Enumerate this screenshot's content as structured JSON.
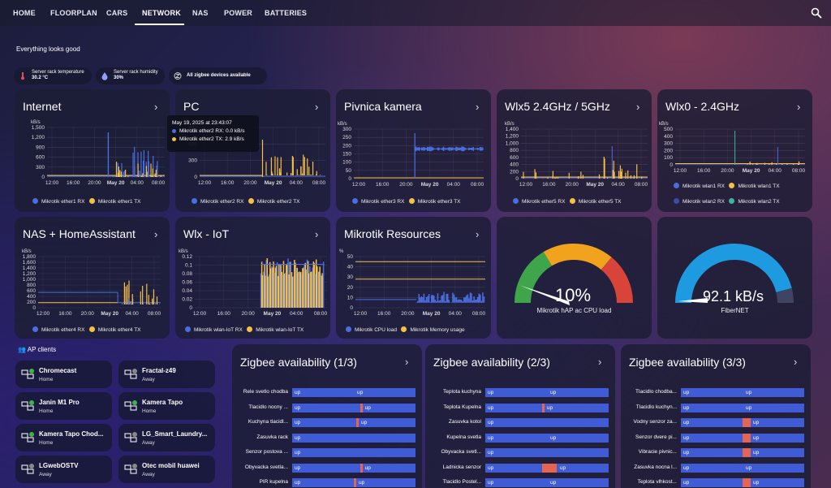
{
  "nav": {
    "tabs": [
      "HOME",
      "FLOORPLAN",
      "CARS",
      "NETWORK",
      "NAS",
      "POWER",
      "BATTERIES"
    ],
    "active": "NETWORK"
  },
  "status": "Everything looks good",
  "chips": [
    {
      "label": "Server rack temperature",
      "value": "30.2 °C",
      "icon": "thermometer-icon",
      "color": "#e05050"
    },
    {
      "label": "Server rack humidity",
      "value": "30%",
      "icon": "water-drop-icon",
      "color": "#8fa0ff"
    },
    {
      "label": "",
      "value": "All zigbee devices available",
      "icon": "zigbee-icon",
      "color": "#ccc"
    }
  ],
  "cards": {
    "internet": {
      "title": "Internet",
      "unit": "kB/s",
      "yticks": [
        "1,500",
        "1,200",
        "900",
        "600",
        "300",
        "0"
      ],
      "xticks": [
        "12:00",
        "16:00",
        "20:00",
        "May 20",
        "04:00",
        "08:00"
      ],
      "legend": [
        "Mikrotik ether1 RX",
        "Mikrotik ether1 TX"
      ]
    },
    "pc": {
      "title": "PC",
      "unit": "kB/s",
      "yticks": [
        "900",
        "600",
        "300",
        "0"
      ],
      "xticks": [
        "12:00",
        "16:00",
        "20:00",
        "May 20",
        "04:00",
        "08:00"
      ],
      "legend": [
        "Mikrotik ether2 RX",
        "Mikrotik ether2 TX"
      ],
      "tooltip": {
        "time": "May 19, 2025 at 23:43:07",
        "rx": "Mikrotik ether2 RX: 0.0 kB/s",
        "tx": "Mikrotik ether2 TX: 2.9 kB/s"
      }
    },
    "pivnica": {
      "title": "Pivnica kamera",
      "unit": "kB/s",
      "yticks": [
        "300",
        "250",
        "200",
        "150",
        "100",
        "50",
        "0"
      ],
      "xticks": [
        "12:00",
        "16:00",
        "20:00",
        "May 20",
        "04:00",
        "08:00"
      ],
      "legend": [
        "Mikrotik ether3 RX",
        "Mikrotik ether3 TX"
      ]
    },
    "wlx5": {
      "title": "Wlx5 2.4GHz / 5GHz",
      "unit": "kB/s",
      "yticks": [
        "1,400",
        "1,200",
        "1,000",
        "800",
        "600",
        "400",
        "200",
        "0"
      ],
      "xticks": [
        "12:00",
        "16:00",
        "20:00",
        "May 20",
        "04:00",
        "08:00"
      ],
      "legend": [
        "Mikrotik ether5 RX",
        "Mikrotik ether5 TX"
      ]
    },
    "wlx0": {
      "title": "Wlx0 - 2.4GHz",
      "unit": "kB/s",
      "yticks": [
        "500",
        "400",
        "300",
        "200",
        "100",
        "0"
      ],
      "xticks": [
        "12:00",
        "16:00",
        "20:00",
        "May 20",
        "04:00",
        "08:00"
      ],
      "legend": [
        "Mikrotik wlan1 RX",
        "Mikrotik wlan1 TX",
        "Mikrotik wlan2 RX",
        "Mikrotik wlan2 TX"
      ]
    },
    "nas": {
      "title": "NAS + HomeAssistant",
      "unit": "kB/s",
      "yticks": [
        "1,800",
        "1,600",
        "1,400",
        "1,200",
        "1,000",
        "800",
        "600",
        "400",
        "200",
        "0"
      ],
      "xticks": [
        "12:00",
        "16:00",
        "20:00",
        "May 20",
        "04:00",
        "08:00"
      ],
      "legend": [
        "Mikrotik ether4 RX",
        "Mikrotik ether4 TX"
      ]
    },
    "wlxiot": {
      "title": "Wlx - IoT",
      "unit": "kB/s",
      "yticks": [
        "0.12",
        "0.1",
        "0.08",
        "0.06",
        "0.04",
        "0.02",
        "0"
      ],
      "xticks": [
        "12:00",
        "16:00",
        "20:00",
        "May 20",
        "04:00",
        "08:00"
      ],
      "legend": [
        "Mikrotik wlan-IoT RX",
        "Mikrotik wlan-IoT TX"
      ]
    },
    "res": {
      "title": "Mikrotik Resources",
      "unit": "%",
      "yticks": [
        "50",
        "40",
        "30",
        "20",
        "10",
        "0"
      ],
      "xticks": [
        "12:00",
        "16:00",
        "20:00",
        "May 20",
        "04:00",
        "08:00"
      ],
      "legend": [
        "Mikrotik CPU load",
        "Mikrotik Memory usage"
      ]
    },
    "cpu": {
      "value": "10%",
      "name": "Mikrotik hAP ac CPU load",
      "fraction": 0.1
    },
    "fiber": {
      "value": "92.1 kB/s",
      "name": "FiberNET",
      "fraction": 0.92
    }
  },
  "ap": {
    "title": "AP clients",
    "clients": [
      {
        "name": "Chromecast",
        "state": "Home"
      },
      {
        "name": "Fractal-z49",
        "state": "Away"
      },
      {
        "name": "Janin M1 Pro",
        "state": "Home"
      },
      {
        "name": "Kamera Tapo",
        "state": "Home"
      },
      {
        "name": "Kamera Tapo Chod...",
        "state": "Home"
      },
      {
        "name": "LG_Smart_Laundry...",
        "state": "Away"
      },
      {
        "name": "LGwebOSTV",
        "state": "Away"
      },
      {
        "name": "Otec mobil huawei",
        "state": "Away"
      }
    ]
  },
  "zigbee": [
    {
      "title": "Zigbee availability (1/3)",
      "rows": [
        {
          "name": "Rele svetlo chodba",
          "segs": [],
          "labels": [
            "up",
            "up"
          ]
        },
        {
          "name": "Tlacidlo nocny ...",
          "segs": [
            0.55
          ],
          "labels": [
            "up",
            "up"
          ]
        },
        {
          "name": "Kuchyna tlacidl...",
          "segs": [
            0.52
          ],
          "labels": [
            "up",
            "up"
          ]
        },
        {
          "name": "Zasuvka rack",
          "segs": [],
          "labels": [
            "up",
            ""
          ]
        },
        {
          "name": "Senzor postova ...",
          "segs": [],
          "labels": [
            "up",
            ""
          ]
        },
        {
          "name": "Obyvacka svetla...",
          "segs": [
            0.55
          ],
          "labels": [
            "up",
            "up"
          ]
        },
        {
          "name": "PIR kupelna",
          "segs": [
            0.5
          ],
          "labels": [
            "up",
            "up"
          ]
        }
      ]
    },
    {
      "title": "Zigbee availability (2/3)",
      "rows": [
        {
          "name": "Teplota kuchyna",
          "segs": [],
          "labels": [
            "up",
            "up"
          ]
        },
        {
          "name": "Teplota Kupelna",
          "segs": [
            0.46
          ],
          "labels": [
            "up",
            "up"
          ]
        },
        {
          "name": "Zasuvka kotol",
          "segs": [],
          "labels": [
            "up",
            ""
          ]
        },
        {
          "name": "Kupelna svetla",
          "segs": [],
          "labels": [
            "up",
            "up"
          ]
        },
        {
          "name": "Obyvacka svetl...",
          "segs": [],
          "labels": [
            "up",
            ""
          ]
        },
        {
          "name": "Ladnicka senzor",
          "segs": [
            0.46
          ],
          "labels": [
            "up",
            "up"
          ]
        },
        {
          "name": "Tlacidlo Postel...",
          "segs": [],
          "labels": [
            "up",
            "up"
          ]
        }
      ]
    },
    {
      "title": "Zigbee availability (3/3)",
      "rows": [
        {
          "name": "Tlacidlo chodba...",
          "segs": [],
          "labels": [
            "up",
            "up"
          ]
        },
        {
          "name": "Tlacidlo kuchyn...",
          "segs": [],
          "labels": [
            "up",
            "up"
          ]
        },
        {
          "name": "Vodny senzor za...",
          "segs": [
            0.5
          ],
          "labels": [
            "up",
            "up"
          ]
        },
        {
          "name": "Senzor dvere pi...",
          "segs": [
            0.5
          ],
          "labels": [
            "up",
            "up"
          ]
        },
        {
          "name": "Vibracie pivnic...",
          "segs": [
            0.5
          ],
          "labels": [
            "up",
            "up"
          ]
        },
        {
          "name": "Zasuvka nocna l...",
          "segs": [],
          "labels": [
            "up",
            "up"
          ]
        },
        {
          "name": "Teplota vlhkost...",
          "segs": [
            0.5
          ],
          "labels": [
            "up",
            "up"
          ]
        }
      ]
    }
  ],
  "colors": {
    "blue": "#4a6ee0",
    "yellow": "#f6c042",
    "teal": "#3fb39c",
    "red": "#e05545"
  }
}
